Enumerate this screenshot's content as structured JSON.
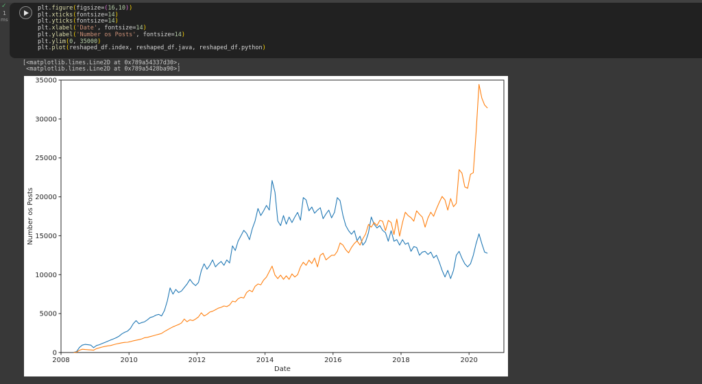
{
  "notebook": {
    "cell": {
      "execution": {
        "check": "✓",
        "count": "1",
        "time": "ms"
      },
      "code_lines": [
        "plt.figure(figsize=(16,10))",
        "plt.xticks(fontsize=14)",
        "plt.yticks(fontsize=14)",
        "plt.xlabel('Date', fontsize=14)",
        "plt.ylabel('Number os Posts', fontsize=14)",
        "plt.ylim(0, 35000)",
        "plt.plot(reshaped_df.index, reshaped_df.java, reshaped_df.python)"
      ]
    },
    "output_text_lines": [
      "[<matplotlib.lines.Line2D at 0x789a54337d30>,",
      " <matplotlib.lines.Line2D at 0x789a5428ba90>]"
    ]
  },
  "syntax_colors": {
    "plain": "#d4d4d4",
    "method": "#dcdcaa",
    "string": "#ce9178",
    "number": "#b5cea8",
    "paren_levels": [
      "#ffd700",
      "#da70d6",
      "#179fff"
    ]
  },
  "chart_data": {
    "type": "line",
    "title": "",
    "xlabel": "Date",
    "ylabel": "Number os Posts",
    "ylim": [
      0,
      35000
    ],
    "xlim_years": [
      2008,
      2021.02
    ],
    "xticks": [
      2008,
      2010,
      2012,
      2014,
      2016,
      2018,
      2020
    ],
    "yticks": [
      0,
      5000,
      10000,
      15000,
      20000,
      25000,
      30000,
      35000
    ],
    "grid": false,
    "legend": "none",
    "background": "#ffffff",
    "axis_color": "#262626",
    "x": [
      "2008-05",
      "2008-06",
      "2008-07",
      "2008-08",
      "2008-09",
      "2008-10",
      "2008-11",
      "2008-12",
      "2009-01",
      "2009-02",
      "2009-03",
      "2009-04",
      "2009-05",
      "2009-06",
      "2009-07",
      "2009-08",
      "2009-09",
      "2009-10",
      "2009-11",
      "2009-12",
      "2010-01",
      "2010-02",
      "2010-03",
      "2010-04",
      "2010-05",
      "2010-06",
      "2010-07",
      "2010-08",
      "2010-09",
      "2010-10",
      "2010-11",
      "2010-12",
      "2011-01",
      "2011-02",
      "2011-03",
      "2011-04",
      "2011-05",
      "2011-06",
      "2011-07",
      "2011-08",
      "2011-09",
      "2011-10",
      "2011-11",
      "2011-12",
      "2012-01",
      "2012-02",
      "2012-03",
      "2012-04",
      "2012-05",
      "2012-06",
      "2012-07",
      "2012-08",
      "2012-09",
      "2012-10",
      "2012-11",
      "2012-12",
      "2013-01",
      "2013-02",
      "2013-03",
      "2013-04",
      "2013-05",
      "2013-06",
      "2013-07",
      "2013-08",
      "2013-09",
      "2013-10",
      "2013-11",
      "2013-12",
      "2014-01",
      "2014-02",
      "2014-03",
      "2014-04",
      "2014-05",
      "2014-06",
      "2014-07",
      "2014-08",
      "2014-09",
      "2014-10",
      "2014-11",
      "2014-12",
      "2015-01",
      "2015-02",
      "2015-03",
      "2015-04",
      "2015-05",
      "2015-06",
      "2015-07",
      "2015-08",
      "2015-09",
      "2015-10",
      "2015-11",
      "2015-12",
      "2016-01",
      "2016-02",
      "2016-03",
      "2016-04",
      "2016-05",
      "2016-06",
      "2016-07",
      "2016-08",
      "2016-09",
      "2016-10",
      "2016-11",
      "2016-12",
      "2017-01",
      "2017-02",
      "2017-03",
      "2017-04",
      "2017-05",
      "2017-06",
      "2017-07",
      "2017-08",
      "2017-09",
      "2017-10",
      "2017-11",
      "2017-12",
      "2018-01",
      "2018-02",
      "2018-03",
      "2018-04",
      "2018-05",
      "2018-06",
      "2018-07",
      "2018-08",
      "2018-09",
      "2018-10",
      "2018-11",
      "2018-12",
      "2019-01",
      "2019-02",
      "2019-03",
      "2019-04",
      "2019-05",
      "2019-06",
      "2019-07",
      "2019-08",
      "2019-09",
      "2019-10",
      "2019-11",
      "2019-12",
      "2020-01",
      "2020-02",
      "2020-03",
      "2020-04",
      "2020-05",
      "2020-06",
      "2020-07"
    ],
    "series": [
      {
        "name": "java",
        "color": "#1f77b4",
        "values": [
          30,
          120,
          650,
          950,
          1050,
          1000,
          950,
          620,
          900,
          1000,
          1150,
          1300,
          1450,
          1600,
          1750,
          1900,
          2100,
          2400,
          2600,
          2750,
          3100,
          3700,
          4100,
          3700,
          3850,
          3950,
          4200,
          4500,
          4600,
          4800,
          4900,
          4700,
          5400,
          6600,
          8300,
          7500,
          8100,
          7700,
          7900,
          8350,
          8800,
          9400,
          8900,
          8600,
          9000,
          10500,
          11400,
          10700,
          11200,
          11900,
          11000,
          11400,
          11700,
          11200,
          11900,
          11500,
          13700,
          13100,
          14300,
          15000,
          15700,
          15300,
          14500,
          15900,
          16900,
          18500,
          17600,
          18200,
          18900,
          18300,
          22100,
          20600,
          16900,
          16300,
          17600,
          16500,
          17400,
          16700,
          17400,
          18000,
          17000,
          19900,
          19600,
          18200,
          18700,
          17900,
          18300,
          18600,
          17200,
          17800,
          18300,
          17300,
          18000,
          19900,
          19500,
          17600,
          16300,
          15650,
          15200,
          15650,
          14350,
          14950,
          13800,
          14250,
          15400,
          17400,
          16500,
          16000,
          16300,
          15700,
          15400,
          14300,
          15650,
          14300,
          14500,
          13800,
          14500,
          13900,
          14100,
          13000,
          13600,
          13500,
          12500,
          12900,
          13000,
          12600,
          12900,
          12150,
          12500,
          11600,
          10550,
          9700,
          10550,
          9500,
          10550,
          12500,
          13000,
          12100,
          11400,
          11000,
          11400,
          12500,
          14000,
          15250,
          14000,
          12900,
          12750
        ]
      },
      {
        "name": "python",
        "color": "#ff7f0e",
        "values": [
          10,
          40,
          300,
          420,
          390,
          360,
          330,
          300,
          500,
          600,
          700,
          780,
          850,
          900,
          1000,
          1100,
          1170,
          1250,
          1300,
          1320,
          1400,
          1500,
          1570,
          1650,
          1750,
          1900,
          1950,
          2050,
          2150,
          2250,
          2350,
          2450,
          2700,
          2900,
          3100,
          3300,
          3450,
          3600,
          3800,
          4300,
          3950,
          4200,
          4100,
          4300,
          4570,
          5100,
          4700,
          4900,
          5200,
          5300,
          5500,
          5700,
          5800,
          5980,
          5900,
          6100,
          6600,
          6500,
          6900,
          7100,
          7000,
          7700,
          8000,
          7800,
          8500,
          8800,
          8700,
          9300,
          9700,
          10400,
          11100,
          9950,
          9500,
          9950,
          9400,
          9850,
          9400,
          10100,
          9700,
          10000,
          11000,
          11600,
          11200,
          11870,
          11430,
          12140,
          11000,
          12500,
          12750,
          11900,
          12200,
          12500,
          12500,
          13000,
          14070,
          13800,
          13200,
          12800,
          13500,
          14000,
          14340,
          13800,
          14600,
          15220,
          16450,
          16100,
          16700,
          16300,
          16970,
          16880,
          15650,
          16970,
          16700,
          15150,
          17150,
          14950,
          16700,
          18030,
          17600,
          17320,
          16880,
          18200,
          17760,
          17400,
          16100,
          17300,
          18030,
          17500,
          18470,
          19300,
          20050,
          19600,
          18290,
          19790,
          18730,
          19170,
          23500,
          23030,
          21280,
          21100,
          22900,
          23100,
          28300,
          34450,
          32700,
          31800,
          31400
        ]
      }
    ]
  }
}
